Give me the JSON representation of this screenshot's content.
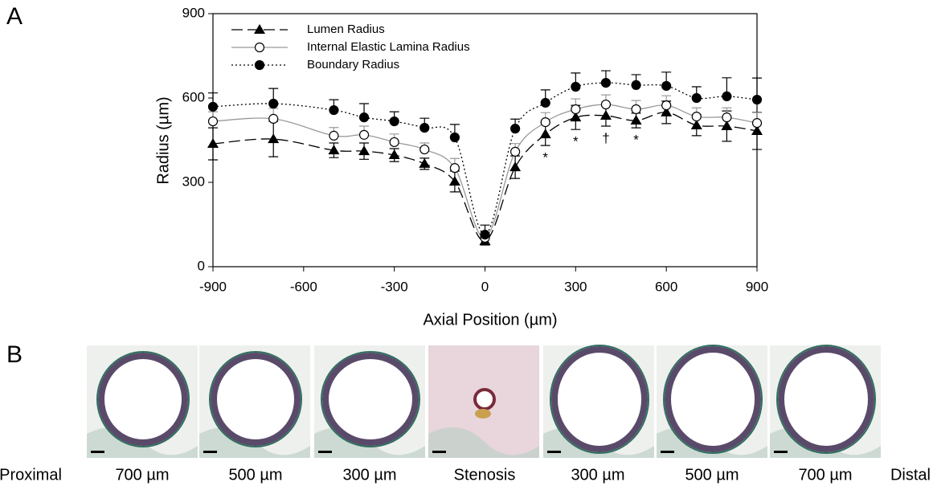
{
  "panel_labels": [
    "A",
    "B"
  ],
  "chart_data": {
    "type": "line",
    "x_label": "Axial Position (µm)",
    "y_label": "Radius (µm)",
    "x": [
      -900,
      -700,
      -500,
      -400,
      -300,
      -200,
      -100,
      0,
      100,
      200,
      300,
      400,
      500,
      600,
      700,
      800,
      900
    ],
    "xlim": [
      -900,
      900
    ],
    "xticks": [
      -900,
      -600,
      -300,
      0,
      300,
      600,
      900
    ],
    "ylim": [
      0,
      900
    ],
    "yticks": [
      0,
      300,
      600,
      900
    ],
    "legend": "upper left",
    "series": [
      {
        "name": "Lumen Radius",
        "color": "#000000",
        "line_style": "dashed",
        "marker": "triangle",
        "values": [
          437,
          454,
          414,
          411,
          397,
          366,
          303,
          91,
          354,
          471,
          531,
          537,
          520,
          549,
          503,
          500,
          483
        ],
        "errors": [
          57,
          63,
          26,
          29,
          23,
          20,
          37,
          14,
          40,
          40,
          43,
          37,
          26,
          40,
          37,
          54,
          66
        ]
      },
      {
        "name": "Internal Elastic Lamina Radius",
        "color": "#999999",
        "line_style": "solid",
        "marker": "open-circle",
        "values": [
          517,
          526,
          466,
          469,
          443,
          417,
          351,
          103,
          409,
          514,
          560,
          577,
          560,
          574,
          534,
          531,
          511
        ],
        "errors": [
          34,
          37,
          29,
          31,
          29,
          23,
          34,
          17,
          29,
          34,
          37,
          34,
          31,
          34,
          31,
          34,
          37
        ]
      },
      {
        "name": "Boundary Radius",
        "color": "#000000",
        "line_style": "dotted",
        "marker": "circle",
        "values": [
          569,
          580,
          557,
          531,
          517,
          494,
          460,
          114,
          491,
          583,
          640,
          654,
          646,
          643,
          600,
          606,
          594
        ],
        "errors": [
          49,
          54,
          37,
          49,
          34,
          34,
          46,
          34,
          34,
          46,
          49,
          43,
          37,
          49,
          40,
          66,
          77
        ]
      }
    ],
    "annotations": [
      {
        "x": 200,
        "text": "*"
      },
      {
        "x": 300,
        "text": "*"
      },
      {
        "x": 400,
        "text": "†"
      },
      {
        "x": 500,
        "text": "*"
      }
    ]
  },
  "panel_b": {
    "labels": [
      "Proximal",
      "700 µm",
      "500 µm",
      "300 µm",
      "Stenosis",
      "300 µm",
      "500 µm",
      "700 µm",
      "Distal"
    ]
  }
}
